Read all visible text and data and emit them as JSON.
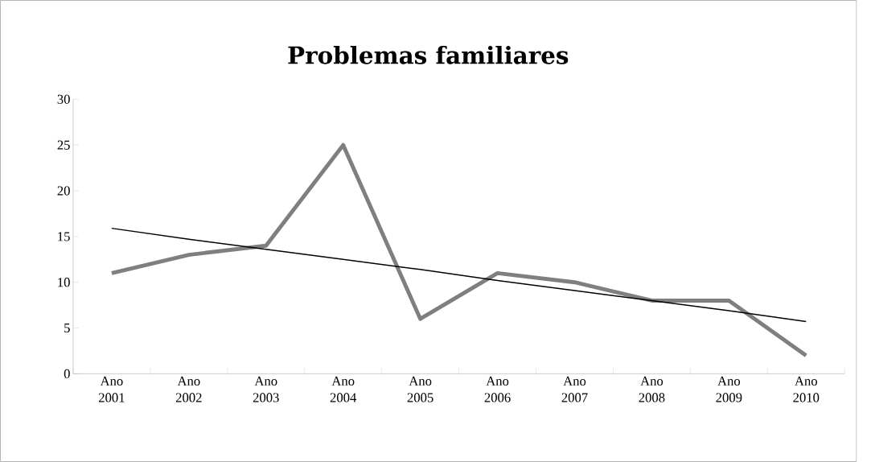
{
  "chart_data": {
    "type": "line",
    "title": "Problemas  familiares",
    "categories": [
      "Ano 2001",
      "Ano 2002",
      "Ano 2003",
      "Ano 2004",
      "Ano 2005",
      "Ano 2006",
      "Ano 2007",
      "Ano 2008",
      "Ano 2009",
      "Ano 2010"
    ],
    "series": [
      {
        "color": "#7f7f7f",
        "values": [
          11,
          13,
          14,
          25,
          6,
          11,
          10,
          8,
          8,
          2
        ]
      },
      {
        "type": "line",
        "color": "#000000",
        "values": [
          15.9,
          14.7,
          13.6,
          12.5,
          11.4,
          10.2,
          9.1,
          8.0,
          6.9,
          5.7
        ]
      }
    ],
    "ylim": [
      0,
      30
    ],
    "yticks": [
      0,
      5,
      10,
      15,
      20,
      25,
      30
    ]
  }
}
